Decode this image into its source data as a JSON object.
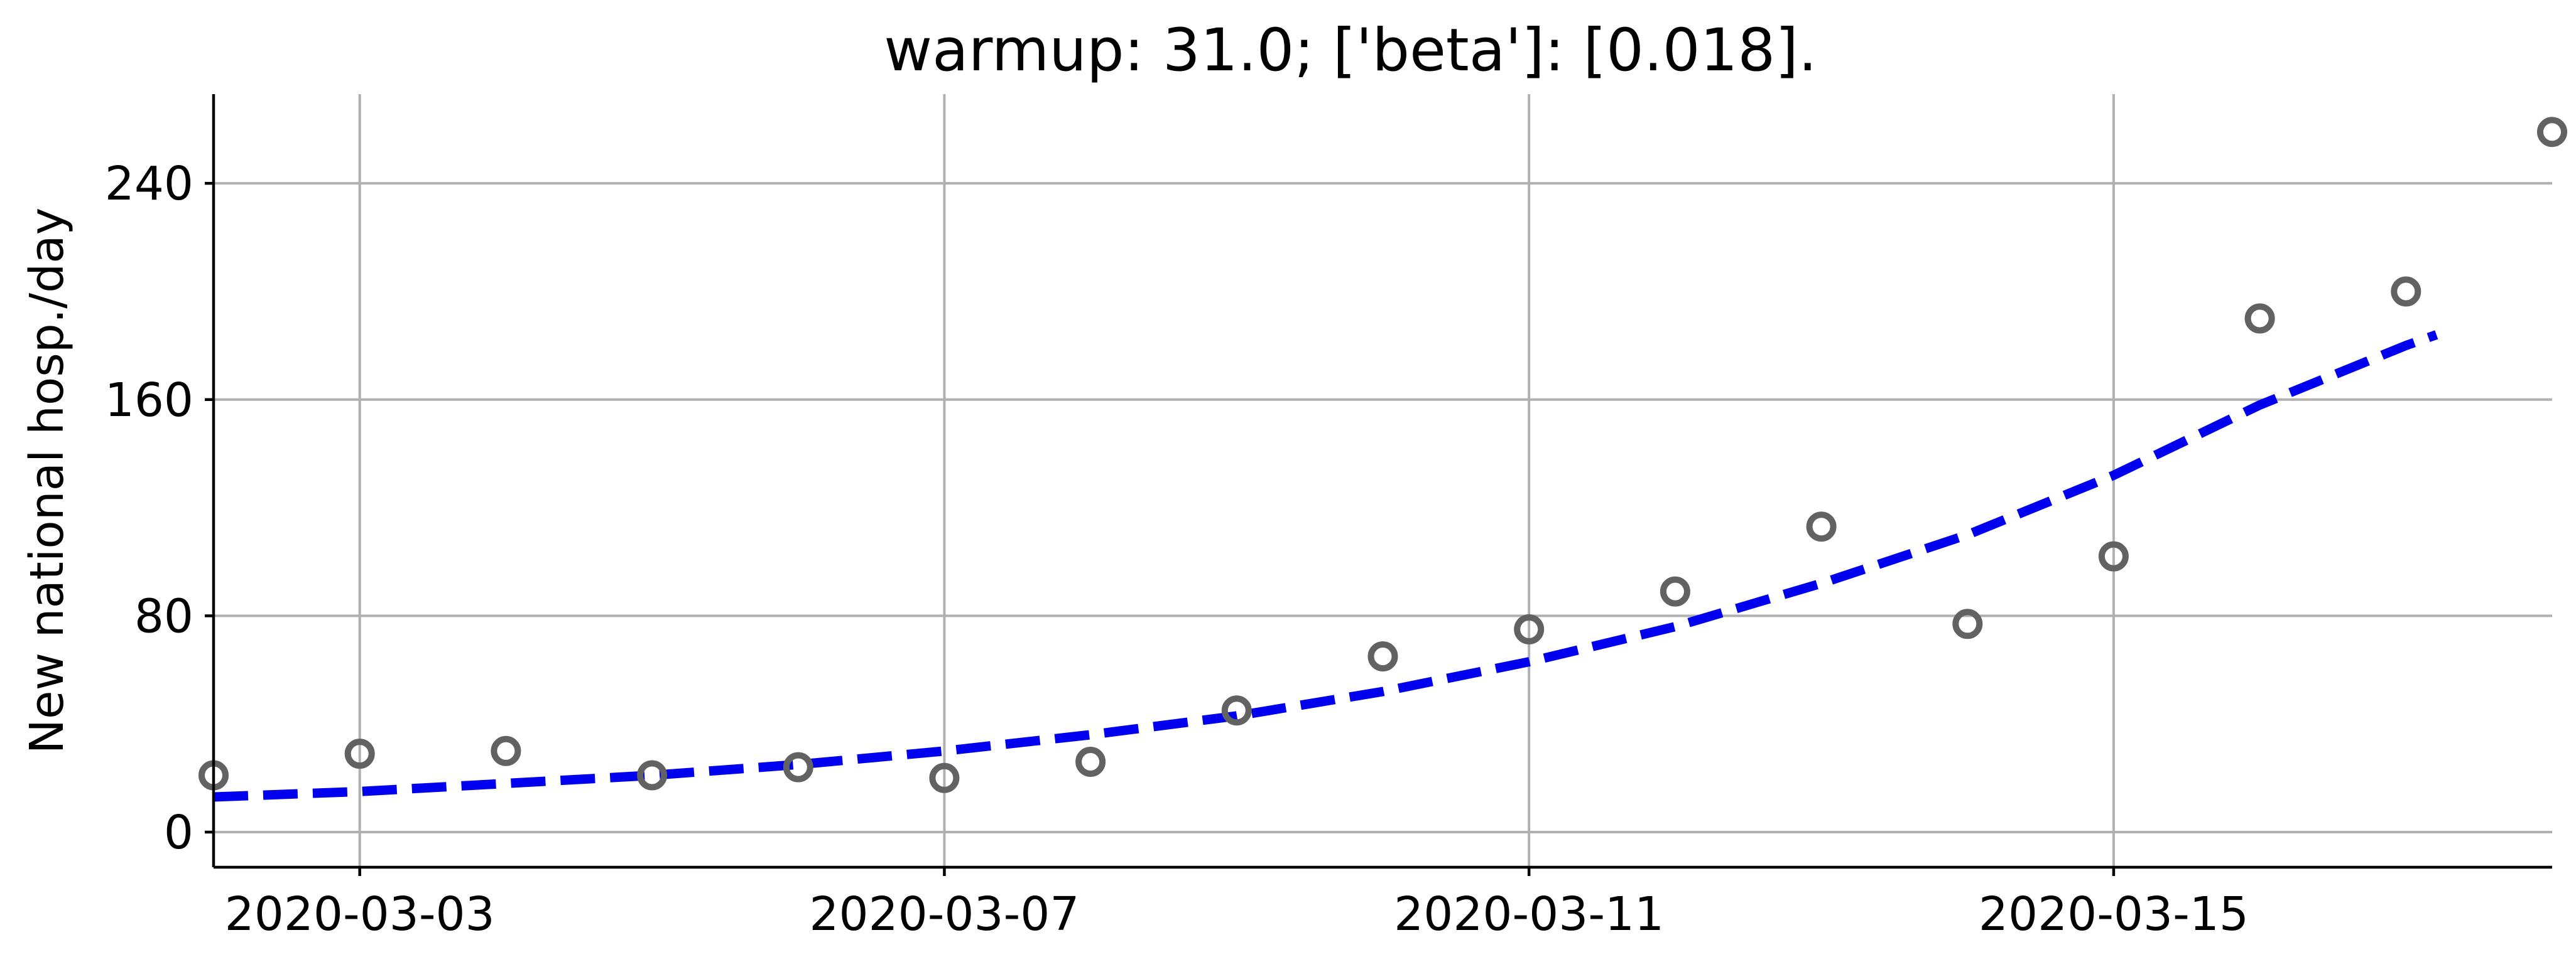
{
  "chart_data": {
    "type": "scatter",
    "title": "warmup: 31.0; ['beta']: [0.018].",
    "xlabel": "",
    "ylabel": "New national hosp./day",
    "xlim": [
      "2020-03-02",
      "2020-03-18"
    ],
    "ylim": [
      -13,
      273
    ],
    "x_ticks": [
      "2020-03-03",
      "2020-03-07",
      "2020-03-11",
      "2020-03-15"
    ],
    "y_ticks": [
      0,
      80,
      160,
      240
    ],
    "grid": true,
    "series": [
      {
        "kind": "markers",
        "color": "#626262",
        "marker": "hollow-circle",
        "x": [
          "2020-03-02",
          "2020-03-03",
          "2020-03-04",
          "2020-03-05",
          "2020-03-06",
          "2020-03-07",
          "2020-03-08",
          "2020-03-09",
          "2020-03-10",
          "2020-03-11",
          "2020-03-12",
          "2020-03-13",
          "2020-03-14",
          "2020-03-15",
          "2020-03-16",
          "2020-03-17",
          "2020-03-18"
        ],
        "values": [
          21,
          29,
          30,
          21,
          24,
          20,
          26,
          45,
          65,
          75,
          89,
          113,
          77,
          102,
          190,
          200,
          259
        ]
      },
      {
        "kind": "line",
        "color": "#0000ee",
        "linestyle": "dashed",
        "x": [
          "2020-03-02",
          "2020-03-03",
          "2020-03-04",
          "2020-03-05",
          "2020-03-06",
          "2020-03-07",
          "2020-03-08",
          "2020-03-09",
          "2020-03-10",
          "2020-03-11",
          "2020-03-12",
          "2020-03-13",
          "2020-03-14",
          "2020-03-15",
          "2020-03-16",
          "2020-03-17",
          "2020-03-17T05"
        ],
        "values": [
          13,
          15,
          18,
          21,
          25,
          30,
          36,
          43,
          52,
          63,
          76,
          92,
          110,
          132,
          158,
          180,
          184
        ]
      }
    ]
  }
}
